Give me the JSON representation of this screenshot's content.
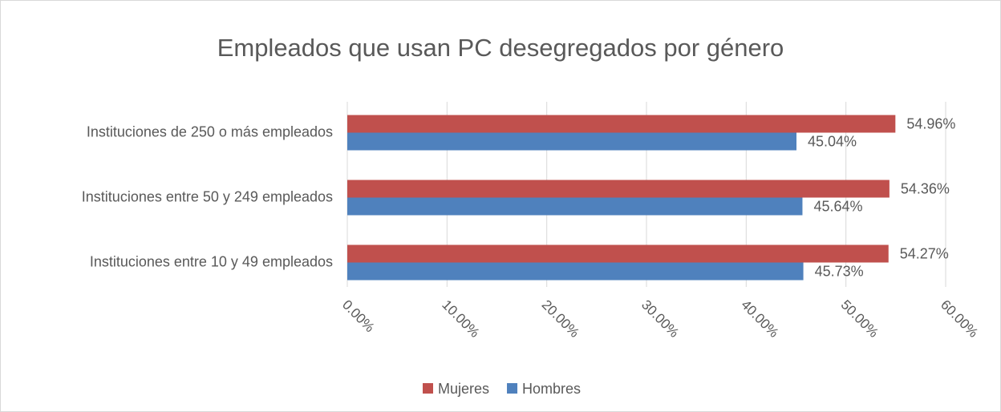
{
  "chart_data": {
    "type": "hbar",
    "title": "Empleados que usan PC desegregados por género",
    "categories": [
      "Instituciones de 250 o más empleados",
      "Instituciones entre 50 y 249 empleados",
      "Instituciones entre 10 y 49 empleados"
    ],
    "series": [
      {
        "name": "Mujeres",
        "color": "#c0504d",
        "values": [
          54.96,
          54.36,
          54.27
        ],
        "value_labels": [
          "54.96%",
          "54.36%",
          "54.27%"
        ]
      },
      {
        "name": "Hombres",
        "color": "#4f81bd",
        "values": [
          45.04,
          45.64,
          45.73
        ],
        "value_labels": [
          "45.04%",
          "45.64%",
          "45.73%"
        ]
      }
    ],
    "xlim": [
      0,
      60
    ],
    "xticks": [
      {
        "value": 0,
        "label": "0.00%"
      },
      {
        "value": 10,
        "label": "10.00%"
      },
      {
        "value": 20,
        "label": "20.00%"
      },
      {
        "value": 30,
        "label": "30.00%"
      },
      {
        "value": 40,
        "label": "40.00%"
      },
      {
        "value": 50,
        "label": "50.00%"
      },
      {
        "value": 60,
        "label": "60.00%"
      }
    ],
    "grid": true,
    "legend": "bottom"
  }
}
